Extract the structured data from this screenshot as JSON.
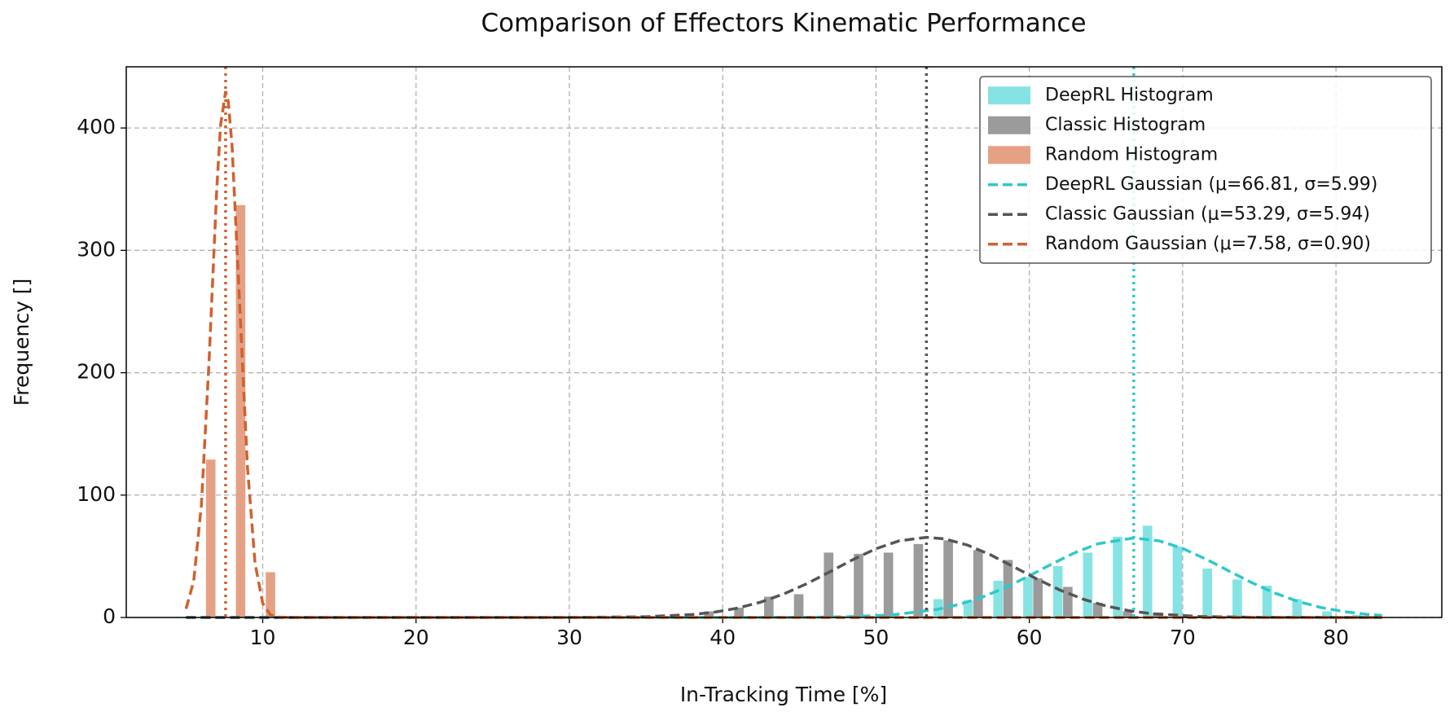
{
  "chart_data": {
    "type": "histogram",
    "title": "Comparison of Effectors Kinematic Performance",
    "xlabel": "In-Tracking Time [%]",
    "ylabel": "Frequency []",
    "xlim": [
      1.1,
      86.9
    ],
    "ylim": [
      0,
      450
    ],
    "xticks": [
      10,
      20,
      30,
      40,
      50,
      60,
      70,
      80
    ],
    "yticks": [
      0,
      100,
      200,
      300,
      400
    ],
    "grid": true,
    "legend": "upper right",
    "bins": [
      5,
      6.95,
      8.9,
      10.85,
      12.8,
      14.75,
      16.7,
      18.65,
      20.6,
      22.55,
      24.5,
      26.45,
      28.4,
      30.35,
      32.3,
      34.25,
      36.2,
      38.15,
      40.1,
      42.05,
      44,
      45.95,
      47.9,
      49.85,
      51.8,
      53.75,
      55.7,
      57.65,
      59.6,
      61.55,
      63.5,
      65.45,
      67.4,
      69.35,
      71.3,
      73.25,
      75.2,
      77.15,
      79.1,
      81.05,
      83
    ],
    "series": [
      {
        "name": "DeepRL Histogram",
        "color": "#86e3e3",
        "values": [
          0,
          0,
          0,
          0,
          0,
          0,
          0,
          0,
          0,
          0,
          0,
          0,
          0,
          0,
          0,
          0,
          0,
          0,
          0,
          0,
          0,
          0,
          0,
          0,
          0,
          15,
          14,
          30,
          33,
          42,
          53,
          66,
          75,
          58,
          40,
          31,
          26,
          15,
          5,
          2
        ]
      },
      {
        "name": "Classic Histogram",
        "color": "#9b9b9b",
        "values": [
          0,
          0,
          0,
          0,
          0,
          0,
          0,
          0,
          0,
          0,
          0,
          0,
          0,
          0,
          0,
          0,
          0,
          5,
          8,
          17,
          19,
          53,
          52,
          53,
          60,
          63,
          55,
          47,
          32,
          25,
          12,
          5,
          4,
          0,
          0,
          0,
          0,
          0,
          0,
          0
        ]
      },
      {
        "name": "Random Histogram",
        "color": "#e6a185",
        "values": [
          129,
          337,
          37,
          0,
          0,
          0,
          0,
          0,
          0,
          0,
          0,
          0,
          0,
          0,
          0,
          0,
          0,
          0,
          0,
          0,
          0,
          0,
          0,
          0,
          0,
          0,
          0,
          0,
          0,
          0,
          0,
          0,
          0,
          0,
          0,
          0,
          0,
          0,
          0,
          0
        ]
      }
    ],
    "lines": [
      {
        "name": "DeepRL Gaussian (μ=66.81, σ=5.99)",
        "color": "#2ec9c9",
        "mean": 66.81,
        "x": [
          5,
          40,
          45,
          48,
          51,
          54,
          55.5,
          57,
          58.5,
          60,
          61.5,
          63,
          64.5,
          66.81,
          68.5,
          70,
          71.5,
          73,
          74.5,
          76,
          77.5,
          79,
          80.5,
          82,
          83
        ],
        "values": [
          0,
          0,
          0.1,
          0.5,
          2.0,
          6.6,
          10.9,
          17.0,
          24.8,
          34.1,
          43.9,
          53.1,
          60.3,
          65,
          62.5,
          56.4,
          47.8,
          38.1,
          28.5,
          20.0,
          13.2,
          8.2,
          4.8,
          2.6,
          1.7
        ]
      },
      {
        "name": "Classic Gaussian (μ=53.29, σ=5.94)",
        "color": "#555555",
        "mean": 53.29,
        "x": [
          5,
          30,
          35,
          38,
          39.5,
          41,
          42.5,
          44,
          45.5,
          47,
          48.5,
          50,
          51.5,
          53.29,
          54.5,
          56,
          57.5,
          59,
          60.5,
          62,
          63.5,
          65,
          66.5,
          68,
          71,
          75,
          83
        ],
        "values": [
          0,
          0,
          0.6,
          2.4,
          4.4,
          7.7,
          12.6,
          19.3,
          27.7,
          37.4,
          47.3,
          56.2,
          62.6,
          65.5,
          64.2,
          59.0,
          51.0,
          41.3,
          31.4,
          22.4,
          15.0,
          9.4,
          5.5,
          3.1,
          0.8,
          0.1,
          0
        ]
      },
      {
        "name": "Random Gaussian (μ=7.58, σ=0.90)",
        "color": "#d0612f",
        "mean": 7.58,
        "x": [
          5,
          5.5,
          6,
          6.5,
          7,
          7.25,
          7.58,
          7.75,
          8,
          8.5,
          9,
          9.5,
          10,
          10.5,
          11,
          12,
          83
        ],
        "values": [
          7.1,
          29.8,
          92.1,
          209.3,
          349.4,
          402,
          430,
          422,
          385.6,
          255.0,
          123.8,
          44.2,
          11.6,
          2.2,
          0.3,
          0,
          0
        ]
      }
    ]
  }
}
